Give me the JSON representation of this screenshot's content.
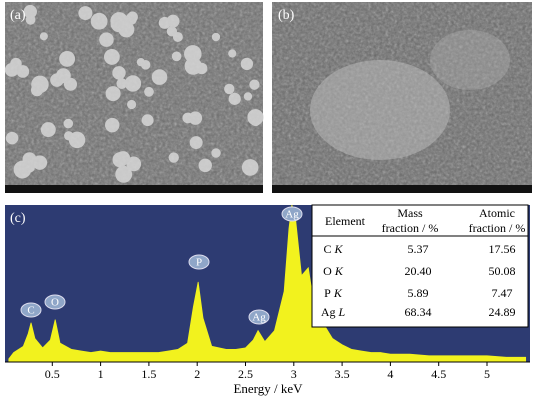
{
  "panels": {
    "a": {
      "label": "(a)"
    },
    "b": {
      "label": "(b)"
    }
  },
  "chart_data": {
    "type": "area",
    "label": "(c)",
    "x_label": "Energy / keV",
    "color": "#f2f21e",
    "background": "#2d3b72",
    "xlim": [
      0,
      5.4
    ],
    "ylim": [
      0,
      100
    ],
    "xticks": [
      0.5,
      1,
      1.5,
      2,
      2.5,
      3,
      3.5,
      4,
      4.5,
      5
    ],
    "x": [
      0.05,
      0.1,
      0.2,
      0.25,
      0.28,
      0.32,
      0.4,
      0.48,
      0.53,
      0.58,
      0.7,
      0.8,
      0.9,
      1.0,
      1.1,
      1.2,
      1.3,
      1.4,
      1.5,
      1.6,
      1.7,
      1.8,
      1.9,
      1.96,
      2.01,
      2.06,
      2.15,
      2.3,
      2.4,
      2.5,
      2.58,
      2.63,
      2.7,
      2.8,
      2.9,
      2.95,
      2.98,
      3.02,
      3.08,
      3.15,
      3.2,
      3.3,
      3.4,
      3.5,
      3.6,
      3.7,
      3.8,
      3.9,
      4.0,
      4.2,
      4.4,
      4.6,
      4.8,
      5.0,
      5.2,
      5.4
    ],
    "values": [
      2,
      6,
      10,
      18,
      25,
      15,
      9,
      14,
      27,
      12,
      8,
      7,
      6,
      7,
      6,
      6,
      6,
      6,
      6,
      6,
      7,
      8,
      12,
      35,
      51,
      28,
      10,
      8,
      8,
      9,
      14,
      20,
      13,
      20,
      45,
      85,
      100,
      90,
      55,
      60,
      40,
      25,
      15,
      11,
      8,
      7,
      6,
      6,
      5,
      5,
      4,
      4,
      4,
      4,
      3,
      3
    ],
    "annotations": [
      "C",
      "O",
      "P",
      "Ag",
      "Ag"
    ],
    "table": {
      "headers": [
        [
          "Element"
        ],
        [
          "Mass",
          "fraction / %"
        ],
        [
          "Atomic",
          "fraction / %"
        ]
      ],
      "rows": [
        [
          "C",
          "K",
          "5.37",
          "17.56"
        ],
        [
          "O",
          "K",
          "20.40",
          "50.08"
        ],
        [
          "P",
          "K",
          "5.89",
          "7.47"
        ],
        [
          "Ag",
          "L",
          "68.34",
          "24.89"
        ]
      ]
    }
  }
}
